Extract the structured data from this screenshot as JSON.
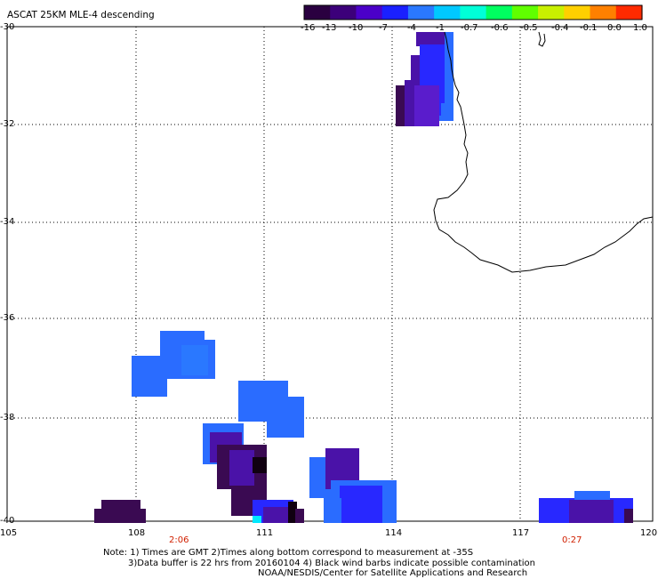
{
  "title": "ASCAT 25KM MLE-4 descending",
  "colorbar": {
    "ticks": [
      "-16",
      "-13",
      "-10",
      "-7",
      "-4",
      "-1",
      "-0.7",
      "-0.6",
      "-0.5",
      "-0.4",
      "-0.1",
      "0.0",
      "1.0"
    ],
    "colors": [
      "#2a0040",
      "#3c007a",
      "#4b00c8",
      "#1a20ff",
      "#2a78ff",
      "#00c8ff",
      "#00ffd8",
      "#00ff60",
      "#60ff00",
      "#c8f000",
      "#ffd000",
      "#ff8000",
      "#ff2a00"
    ]
  },
  "axes": {
    "x_ticks": [
      "105",
      "108",
      "111",
      "114",
      "117",
      "120"
    ],
    "y_ticks": [
      "-30",
      "-32",
      "-34",
      "-36",
      "-38",
      "-40"
    ]
  },
  "time_labels": [
    "2:06",
    "0:27"
  ],
  "notes": {
    "line1": "Note: 1) Times are GMT 2)Times along bottom correspond to measurement at -35S",
    "line2": "3)Data buffer is 22 hrs from 20160104 4) Black wind barbs indicate possible contamination",
    "line3": "NOAA/NESDIS/Center for Satellite Applications and Research"
  },
  "colors": {
    "deep_purple": "#3a0a52",
    "purple": "#4a12a8",
    "violet": "#5a1ccc",
    "blue": "#2828ff",
    "light_blue": "#2a6cff",
    "cyan": "#00e8ff",
    "black": "#100010",
    "time_label": "#d02000"
  }
}
